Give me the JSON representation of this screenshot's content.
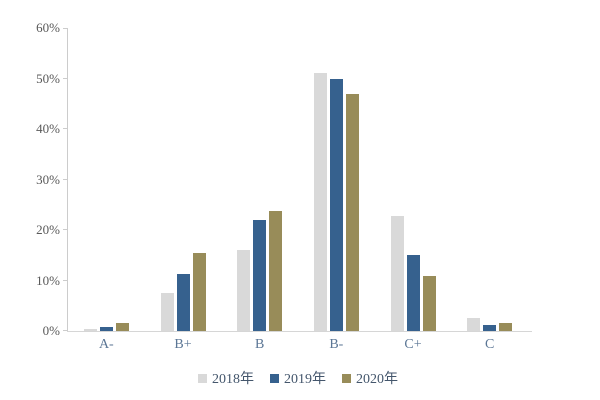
{
  "chart_data": {
    "type": "bar",
    "title": "",
    "xlabel": "",
    "ylabel": "",
    "categories": [
      "A-",
      "B+",
      "B",
      "B-",
      "C+",
      "C"
    ],
    "series": [
      {
        "name": "2018年",
        "color": "#d9d9d9",
        "values": [
          0.5,
          7.5,
          16.0,
          51.0,
          22.8,
          2.5
        ]
      },
      {
        "name": "2019年",
        "color": "#36618e",
        "values": [
          0.8,
          11.2,
          22.0,
          50.0,
          15.0,
          1.2
        ]
      },
      {
        "name": "2020年",
        "color": "#988c59",
        "values": [
          1.5,
          15.5,
          23.7,
          47.0,
          11.0,
          1.5
        ]
      }
    ],
    "y_ticks": [
      "0%",
      "10%",
      "20%",
      "30%",
      "40%",
      "50%",
      "60%"
    ],
    "ylim": [
      0,
      60
    ],
    "grid": false,
    "legend_position": "bottom",
    "axis_color": "#cccccc",
    "tick_label_color": "#595959",
    "category_label_color": "#5b7695",
    "legend_label_color": "#44566c"
  }
}
